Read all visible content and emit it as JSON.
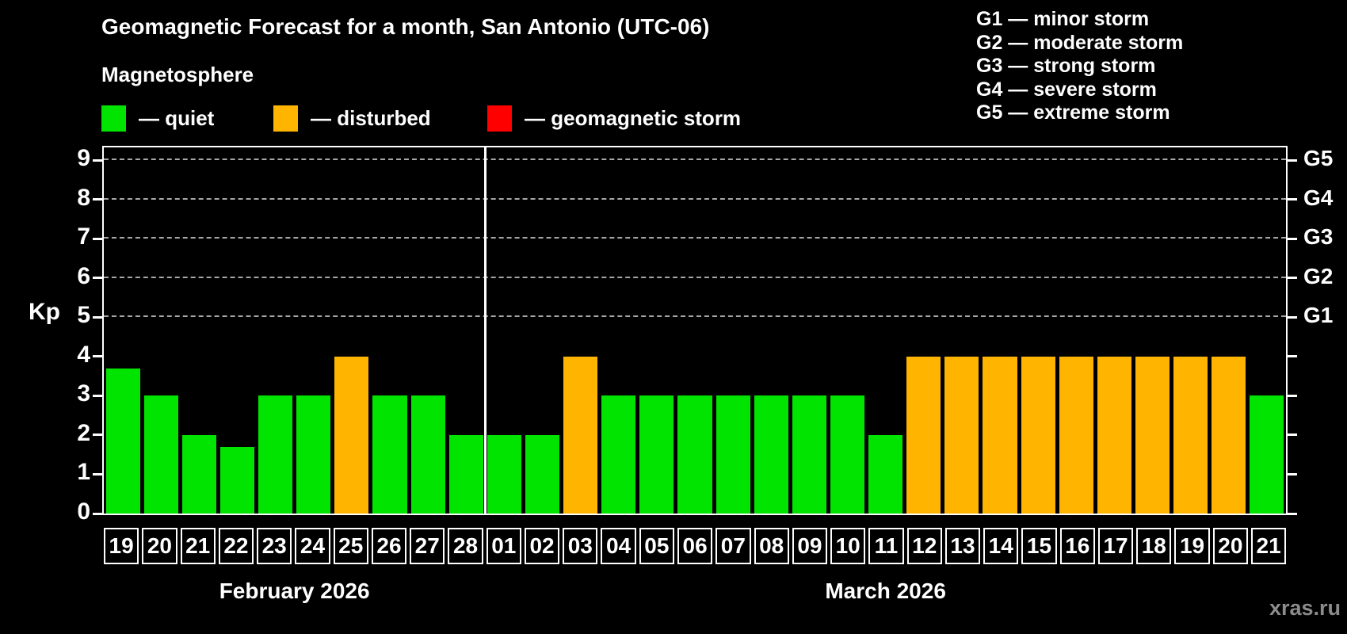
{
  "title": "Geomagnetic Forecast for a month, San Antonio (UTC-06)",
  "magnetosphere_legend": {
    "heading": "Magnetosphere",
    "items": [
      {
        "key": "quiet",
        "label": "— quiet",
        "color": "#00e400"
      },
      {
        "key": "disturbed",
        "label": "— disturbed",
        "color": "#ffb400"
      },
      {
        "key": "storm",
        "label": "— geomagnetic storm",
        "color": "#ff0000"
      }
    ]
  },
  "g_scale_legend": {
    "lines": [
      "G1 — minor storm",
      "G2 — moderate storm",
      "G3 — strong storm",
      "G4 — severe storm",
      "G5 — extreme storm"
    ]
  },
  "watermark": "xras.ru",
  "chart_data": {
    "type": "bar",
    "title": "Geomagnetic Forecast for a month, San Antonio (UTC-06)",
    "ylabel": "Kp",
    "ylim": [
      0,
      9.33
    ],
    "y_ticks": [
      0,
      1,
      2,
      3,
      4,
      5,
      6,
      7,
      8,
      9
    ],
    "grid": "horizontal dashed lines at Kp 5-9",
    "gridlines_kp": [
      5,
      6,
      7,
      8,
      9
    ],
    "right_axis_labels": [
      {
        "kp": 5,
        "label": "G1"
      },
      {
        "kp": 6,
        "label": "G2"
      },
      {
        "kp": 7,
        "label": "G3"
      },
      {
        "kp": 8,
        "label": "G4"
      },
      {
        "kp": 9,
        "label": "G5"
      }
    ],
    "months": [
      {
        "label": "February 2026",
        "days": 10
      },
      {
        "label": "March 2026",
        "days": 21
      }
    ],
    "status_colors": {
      "quiet": "#00e400",
      "disturbed": "#ffb400",
      "storm": "#ff0000"
    },
    "bars": [
      {
        "month": "February 2026",
        "day": "19",
        "kp": 3.7,
        "status": "quiet"
      },
      {
        "month": "February 2026",
        "day": "20",
        "kp": 3,
        "status": "quiet"
      },
      {
        "month": "February 2026",
        "day": "21",
        "kp": 2,
        "status": "quiet"
      },
      {
        "month": "February 2026",
        "day": "22",
        "kp": 1.7,
        "status": "quiet"
      },
      {
        "month": "February 2026",
        "day": "23",
        "kp": 3,
        "status": "quiet"
      },
      {
        "month": "February 2026",
        "day": "24",
        "kp": 3,
        "status": "quiet"
      },
      {
        "month": "February 2026",
        "day": "25",
        "kp": 4,
        "status": "disturbed"
      },
      {
        "month": "February 2026",
        "day": "26",
        "kp": 3,
        "status": "quiet"
      },
      {
        "month": "February 2026",
        "day": "27",
        "kp": 3,
        "status": "quiet"
      },
      {
        "month": "February 2026",
        "day": "28",
        "kp": 2,
        "status": "quiet"
      },
      {
        "month": "March 2026",
        "day": "01",
        "kp": 2,
        "status": "quiet"
      },
      {
        "month": "March 2026",
        "day": "02",
        "kp": 2,
        "status": "quiet"
      },
      {
        "month": "March 2026",
        "day": "03",
        "kp": 4,
        "status": "disturbed"
      },
      {
        "month": "March 2026",
        "day": "04",
        "kp": 3,
        "status": "quiet"
      },
      {
        "month": "March 2026",
        "day": "05",
        "kp": 3,
        "status": "quiet"
      },
      {
        "month": "March 2026",
        "day": "06",
        "kp": 3,
        "status": "quiet"
      },
      {
        "month": "March 2026",
        "day": "07",
        "kp": 3,
        "status": "quiet"
      },
      {
        "month": "March 2026",
        "day": "08",
        "kp": 3,
        "status": "quiet"
      },
      {
        "month": "March 2026",
        "day": "09",
        "kp": 3,
        "status": "quiet"
      },
      {
        "month": "March 2026",
        "day": "10",
        "kp": 3,
        "status": "quiet"
      },
      {
        "month": "March 2026",
        "day": "11",
        "kp": 2,
        "status": "quiet"
      },
      {
        "month": "March 2026",
        "day": "12",
        "kp": 4,
        "status": "disturbed"
      },
      {
        "month": "March 2026",
        "day": "13",
        "kp": 4,
        "status": "disturbed"
      },
      {
        "month": "March 2026",
        "day": "14",
        "kp": 4,
        "status": "disturbed"
      },
      {
        "month": "March 2026",
        "day": "15",
        "kp": 4,
        "status": "disturbed"
      },
      {
        "month": "March 2026",
        "day": "16",
        "kp": 4,
        "status": "disturbed"
      },
      {
        "month": "March 2026",
        "day": "17",
        "kp": 4,
        "status": "disturbed"
      },
      {
        "month": "March 2026",
        "day": "18",
        "kp": 4,
        "status": "disturbed"
      },
      {
        "month": "March 2026",
        "day": "19",
        "kp": 4,
        "status": "disturbed"
      },
      {
        "month": "March 2026",
        "day": "20",
        "kp": 4,
        "status": "disturbed"
      },
      {
        "month": "March 2026",
        "day": "21",
        "kp": 3,
        "status": "quiet"
      }
    ]
  }
}
